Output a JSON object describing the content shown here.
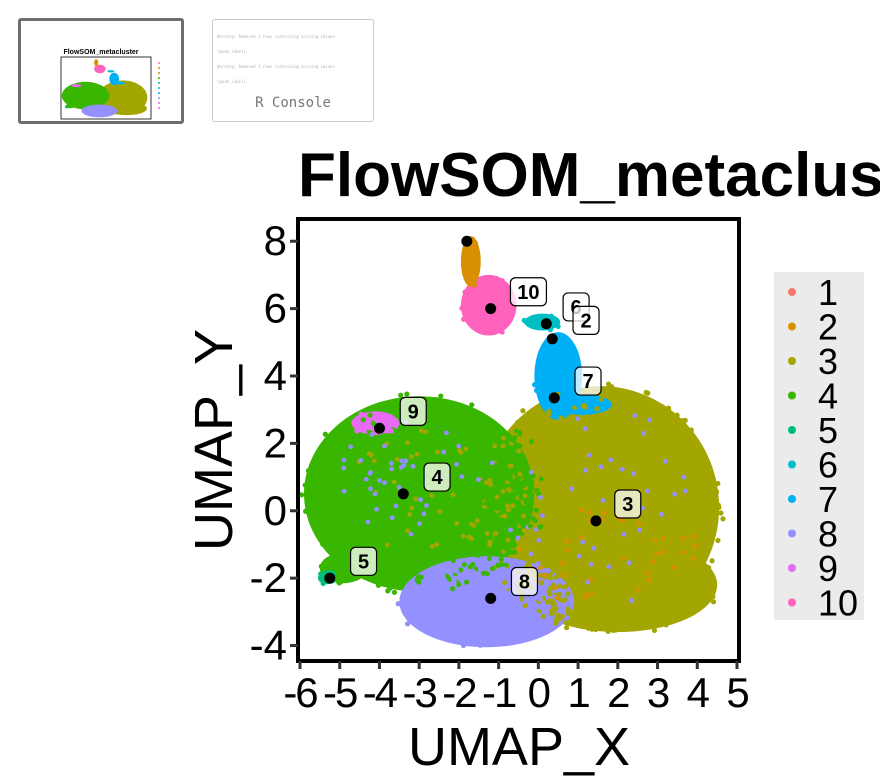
{
  "thumbnails": [
    {
      "kind": "plot",
      "title": "FlowSOM_metacluster",
      "xlabel": "UMAP_X",
      "ylabel": "UMAP_Y"
    },
    {
      "kind": "console",
      "label": "R Console",
      "lines": [
        "Warning: Removed 1 rows containing missing values",
        "(geom_label).",
        "Warning: Removed 1 rows containing missing values",
        "(geom_label)."
      ]
    }
  ],
  "chart_data": {
    "type": "scatter",
    "title": "FlowSOM_metacluster",
    "xlabel": "UMAP_X",
    "ylabel": "UMAP_Y",
    "xlim": [
      -6,
      5
    ],
    "ylim": [
      -4.4,
      8.6
    ],
    "xticks": [
      "-6",
      "-5",
      "-4",
      "-3",
      "-2",
      "-1",
      "0",
      "1",
      "2",
      "3",
      "4",
      "5"
    ],
    "yticks": [
      "-4",
      "-2",
      "0",
      "2",
      "4",
      "6",
      "8"
    ],
    "grid": false,
    "legend_position": "right",
    "legend": [
      {
        "label": "1",
        "color": "#F8766D"
      },
      {
        "label": "2",
        "color": "#D89000"
      },
      {
        "label": "3",
        "color": "#A3A500"
      },
      {
        "label": "4",
        "color": "#39B600"
      },
      {
        "label": "5",
        "color": "#00BF7D"
      },
      {
        "label": "6",
        "color": "#00BFC4"
      },
      {
        "label": "7",
        "color": "#00B0F6"
      },
      {
        "label": "8",
        "color": "#9590FF"
      },
      {
        "label": "9",
        "color": "#E76BF3"
      },
      {
        "label": "10",
        "color": "#FF62BC"
      }
    ],
    "centroids": [
      {
        "cluster": "1",
        "x": -1.8,
        "y": 8.0
      },
      {
        "cluster": "10",
        "x": -1.2,
        "y": 6.0
      },
      {
        "cluster": "6",
        "x": 0.2,
        "y": 5.55
      },
      {
        "cluster": "2",
        "x": 0.35,
        "y": 5.1
      },
      {
        "cluster": "7",
        "x": 0.4,
        "y": 3.35
      },
      {
        "cluster": "9",
        "x": -4.0,
        "y": 2.45
      },
      {
        "cluster": "4",
        "x": -3.4,
        "y": 0.5
      },
      {
        "cluster": "3",
        "x": 1.45,
        "y": -0.3
      },
      {
        "cluster": "5",
        "x": -5.25,
        "y": -2.0
      },
      {
        "cluster": "8",
        "x": -1.2,
        "y": -2.6
      }
    ],
    "labels": [
      {
        "text": "10",
        "x": -0.25,
        "y": 6.5
      },
      {
        "text": "6",
        "x": 0.95,
        "y": 6.05
      },
      {
        "text": "2",
        "x": 1.2,
        "y": 5.65
      },
      {
        "text": "7",
        "x": 1.25,
        "y": 3.85
      },
      {
        "text": "9",
        "x": -3.15,
        "y": 2.95
      },
      {
        "text": "4",
        "x": -2.55,
        "y": 1.0
      },
      {
        "text": "3",
        "x": 2.25,
        "y": 0.2
      },
      {
        "text": "5",
        "x": -4.4,
        "y": -1.5
      },
      {
        "text": "8",
        "x": -0.35,
        "y": -2.1
      }
    ],
    "regions": [
      {
        "cluster": "3",
        "shape": "ellipse",
        "cx": 1.55,
        "cy": 0.1,
        "rx": 3.0,
        "ry": 3.6
      },
      {
        "cluster": "3",
        "shape": "ellipse",
        "cx": 2.0,
        "cy": -2.2,
        "rx": 2.5,
        "ry": 1.4
      },
      {
        "cluster": "4",
        "shape": "ellipse",
        "cx": -3.0,
        "cy": 0.5,
        "rx": 2.9,
        "ry": 2.9
      },
      {
        "cluster": "4",
        "shape": "ellipse",
        "cx": -4.9,
        "cy": -1.7,
        "rx": 0.6,
        "ry": 0.45
      },
      {
        "cluster": "5",
        "shape": "ellipse",
        "cx": -5.3,
        "cy": -2.0,
        "rx": 0.25,
        "ry": 0.18
      },
      {
        "cluster": "8",
        "shape": "ellipse",
        "cx": -1.3,
        "cy": -2.7,
        "rx": 2.2,
        "ry": 1.35
      },
      {
        "cluster": "9",
        "shape": "ellipse",
        "cx": -4.1,
        "cy": 2.6,
        "rx": 0.6,
        "ry": 0.35
      },
      {
        "cluster": "7",
        "shape": "ellipse",
        "cx": 0.5,
        "cy": 4.0,
        "rx": 0.6,
        "ry": 1.3
      },
      {
        "cluster": "7",
        "shape": "ellipse",
        "cx": 1.1,
        "cy": 3.15,
        "rx": 0.75,
        "ry": 0.3
      },
      {
        "cluster": "10",
        "shape": "ellipse",
        "cx": -1.25,
        "cy": 6.1,
        "rx": 0.7,
        "ry": 0.9
      },
      {
        "cluster": "2",
        "shape": "ellipse",
        "cx": -1.7,
        "cy": 7.4,
        "rx": 0.25,
        "ry": 0.75
      },
      {
        "cluster": "6",
        "shape": "ellipse",
        "cx": 0.1,
        "cy": 5.6,
        "rx": 0.45,
        "ry": 0.25
      }
    ]
  }
}
